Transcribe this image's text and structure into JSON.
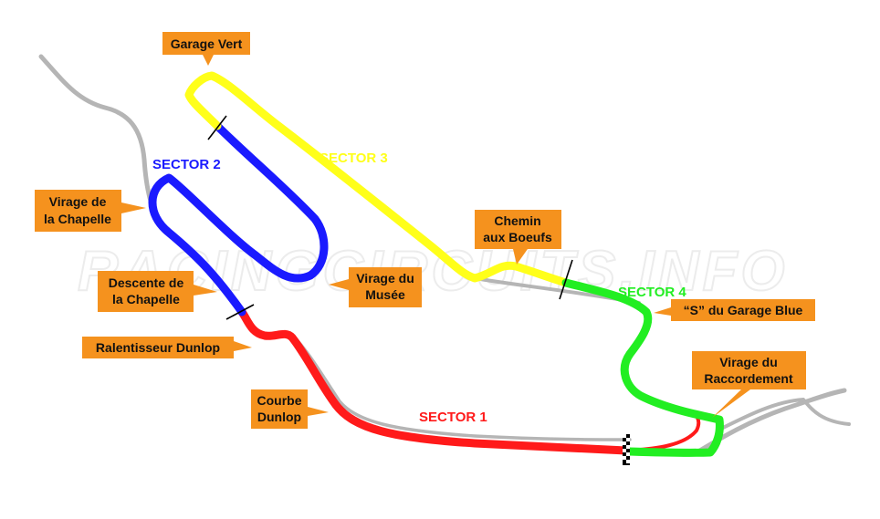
{
  "watermark": "RACINGCIRCUITS.INFO",
  "colors": {
    "sector1": "#ff1a1a",
    "sector2": "#1a1aff",
    "sector3": "#ffff1a",
    "sector4": "#22ee22",
    "label_box": "#f5921e",
    "old_track": "#b5b5b5"
  },
  "sectors": [
    {
      "id": "sector1",
      "label": "SECTOR 1"
    },
    {
      "id": "sector2",
      "label": "SECTOR 2"
    },
    {
      "id": "sector3",
      "label": "SECTOR 3"
    },
    {
      "id": "sector4",
      "label": "SECTOR 4"
    }
  ],
  "corners": [
    {
      "id": "garage-vert",
      "lines": [
        "Garage Vert"
      ]
    },
    {
      "id": "virage-de-la-chapelle",
      "lines": [
        "Virage de",
        "la Chapelle"
      ]
    },
    {
      "id": "descente-de-la-chapelle",
      "lines": [
        "Descente de",
        "la Chapelle"
      ]
    },
    {
      "id": "ralentisseur-dunlop",
      "lines": [
        "Ralentisseur Dunlop"
      ]
    },
    {
      "id": "courbe-dunlop",
      "lines": [
        "Courbe",
        "Dunlop"
      ]
    },
    {
      "id": "virage-du-musee",
      "lines": [
        "Virage du",
        "Musée"
      ]
    },
    {
      "id": "chemin-aux-boeufs",
      "lines": [
        "Chemin",
        "aux Boeufs"
      ]
    },
    {
      "id": "s-du-garage-blue",
      "lines": [
        "“S” du Garage Blue"
      ]
    },
    {
      "id": "virage-du-raccordement",
      "lines": [
        "Virage du",
        "Raccordement"
      ]
    }
  ],
  "icons": {
    "start_finish": "checkered-flag-icon"
  }
}
